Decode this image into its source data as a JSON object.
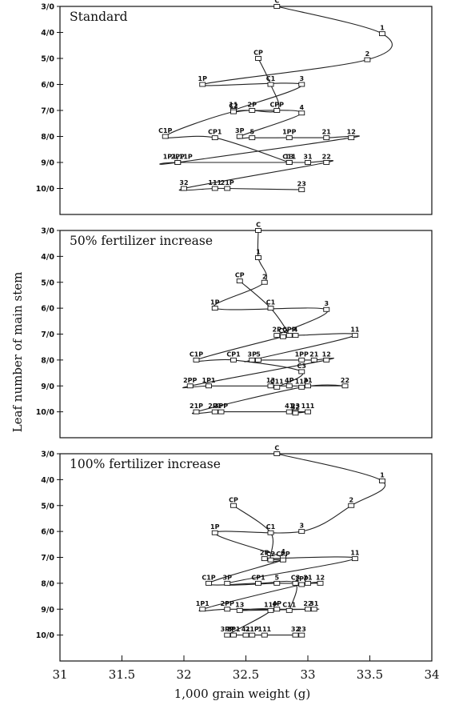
{
  "chart_data": {
    "type": "scatter",
    "ylabel": "Leaf number of main stem",
    "xlabel": "1,000 grain weight (g)",
    "x_ticks": [
      "31",
      "31.5",
      "32",
      "32.5",
      "33",
      "33.5",
      "34"
    ],
    "y_ticks": [
      "3/0",
      "4/0",
      "5/0",
      "6/0",
      "7/0",
      "8/0",
      "9/0",
      "10/0"
    ],
    "xlim": [
      31,
      34
    ],
    "ylim": [
      3,
      11
    ],
    "panels": [
      {
        "title": "Standard",
        "points": [
          {
            "label": "C",
            "x": 32.75,
            "y": 3.0
          },
          {
            "label": "1",
            "x": 33.6,
            "y": 4.05
          },
          {
            "label": "2",
            "x": 33.48,
            "y": 5.05
          },
          {
            "label": "3",
            "x": 32.95,
            "y": 6.0
          },
          {
            "label": "4",
            "x": 32.95,
            "y": 7.1
          },
          {
            "label": "5",
            "x": 32.55,
            "y": 8.05
          },
          {
            "label": "CP",
            "x": 32.6,
            "y": 5.0
          },
          {
            "label": "C1",
            "x": 32.7,
            "y": 6.0
          },
          {
            "label": "1P",
            "x": 32.15,
            "y": 6.0
          },
          {
            "label": "11",
            "x": 32.4,
            "y": 7.0
          },
          {
            "label": "C2",
            "x": 32.4,
            "y": 7.05
          },
          {
            "label": "2P",
            "x": 32.55,
            "y": 7.0
          },
          {
            "label": "CPP",
            "x": 32.75,
            "y": 7.0
          },
          {
            "label": "C1P",
            "x": 31.85,
            "y": 8.0
          },
          {
            "label": "CP1",
            "x": 32.25,
            "y": 8.05
          },
          {
            "label": "3P",
            "x": 32.45,
            "y": 8.0
          },
          {
            "label": "1PP",
            "x": 32.85,
            "y": 8.05
          },
          {
            "label": "21",
            "x": 33.15,
            "y": 8.05
          },
          {
            "label": "12",
            "x": 33.35,
            "y": 8.05
          },
          {
            "label": "13",
            "x": 32.85,
            "y": 9.0
          },
          {
            "label": "31",
            "x": 33.0,
            "y": 9.0
          },
          {
            "label": "22",
            "x": 33.15,
            "y": 9.0
          },
          {
            "label": "C11",
            "x": 32.85,
            "y": 9.0
          },
          {
            "label": "2PP",
            "x": 31.95,
            "y": 9.0
          },
          {
            "label": "1P1,11P",
            "x": 31.95,
            "y": 9.0
          },
          {
            "label": "32",
            "x": 32.0,
            "y": 10.0
          },
          {
            "label": "111",
            "x": 32.25,
            "y": 10.0
          },
          {
            "label": "21P",
            "x": 32.35,
            "y": 10.0
          },
          {
            "label": "23",
            "x": 32.95,
            "y": 10.05
          }
        ]
      },
      {
        "title": "50% fertilizer increase",
        "points": [
          {
            "label": "C",
            "x": 32.6,
            "y": 3.0
          },
          {
            "label": "1",
            "x": 32.6,
            "y": 4.05
          },
          {
            "label": "2",
            "x": 32.65,
            "y": 5.0
          },
          {
            "label": "3",
            "x": 33.15,
            "y": 6.05
          },
          {
            "label": "4",
            "x": 32.9,
            "y": 7.05
          },
          {
            "label": "5",
            "x": 32.6,
            "y": 8.0
          },
          {
            "label": "CP",
            "x": 32.45,
            "y": 4.95
          },
          {
            "label": "C1",
            "x": 32.7,
            "y": 6.0
          },
          {
            "label": "1P",
            "x": 32.25,
            "y": 6.0
          },
          {
            "label": "11",
            "x": 33.38,
            "y": 7.05
          },
          {
            "label": "2P",
            "x": 32.75,
            "y": 7.05
          },
          {
            "label": "CPP",
            "x": 32.85,
            "y": 7.05
          },
          {
            "label": "C2",
            "x": 32.8,
            "y": 7.1
          },
          {
            "label": "C1P",
            "x": 32.1,
            "y": 8.0
          },
          {
            "label": "CP1",
            "x": 32.4,
            "y": 8.0
          },
          {
            "label": "3P",
            "x": 32.55,
            "y": 8.0
          },
          {
            "label": "1PP",
            "x": 32.95,
            "y": 8.0
          },
          {
            "label": "21",
            "x": 33.05,
            "y": 8.0
          },
          {
            "label": "12",
            "x": 33.15,
            "y": 8.0
          },
          {
            "label": "C3",
            "x": 32.95,
            "y": 8.45
          },
          {
            "label": "22",
            "x": 33.3,
            "y": 9.0
          },
          {
            "label": "2PP",
            "x": 32.05,
            "y": 9.0
          },
          {
            "label": "1P1",
            "x": 32.2,
            "y": 9.0
          },
          {
            "label": "13",
            "x": 32.7,
            "y": 9.0
          },
          {
            "label": "4P",
            "x": 32.85,
            "y": 9.0
          },
          {
            "label": "31",
            "x": 33.0,
            "y": 9.0
          },
          {
            "label": "11P",
            "x": 32.95,
            "y": 9.05
          },
          {
            "label": "C11",
            "x": 32.75,
            "y": 9.05
          },
          {
            "label": "21P",
            "x": 32.1,
            "y": 10.0
          },
          {
            "label": "2P1",
            "x": 32.25,
            "y": 10.0
          },
          {
            "label": "3PP",
            "x": 32.3,
            "y": 10.0
          },
          {
            "label": "41",
            "x": 32.85,
            "y": 10.0
          },
          {
            "label": "23",
            "x": 32.9,
            "y": 10.0
          },
          {
            "label": "111",
            "x": 33.0,
            "y": 10.0
          },
          {
            "label": "32",
            "x": 32.9,
            "y": 10.05
          }
        ]
      },
      {
        "title": "100% fertilizer increase",
        "points": [
          {
            "label": "C",
            "x": 32.75,
            "y": 3.0
          },
          {
            "label": "1",
            "x": 33.6,
            "y": 4.05
          },
          {
            "label": "2",
            "x": 33.35,
            "y": 5.0
          },
          {
            "label": "3",
            "x": 32.95,
            "y": 6.0
          },
          {
            "label": "4",
            "x": 32.8,
            "y": 7.0
          },
          {
            "label": "5",
            "x": 32.75,
            "y": 8.0
          },
          {
            "label": "CP",
            "x": 32.4,
            "y": 5.0
          },
          {
            "label": "C1",
            "x": 32.7,
            "y": 6.05
          },
          {
            "label": "1P",
            "x": 32.25,
            "y": 6.05
          },
          {
            "label": "11",
            "x": 33.38,
            "y": 7.05
          },
          {
            "label": "2P",
            "x": 32.65,
            "y": 7.05
          },
          {
            "label": "C2",
            "x": 32.7,
            "y": 7.1
          },
          {
            "label": "CPP",
            "x": 32.8,
            "y": 7.1
          },
          {
            "label": "C1P",
            "x": 32.2,
            "y": 8.0
          },
          {
            "label": "3P",
            "x": 32.35,
            "y": 8.0
          },
          {
            "label": "CP1",
            "x": 32.6,
            "y": 8.0
          },
          {
            "label": "C3",
            "x": 32.9,
            "y": 8.0
          },
          {
            "label": "21",
            "x": 33.0,
            "y": 8.0
          },
          {
            "label": "12",
            "x": 33.1,
            "y": 8.0
          },
          {
            "label": "1PP",
            "x": 32.95,
            "y": 8.05
          },
          {
            "label": "1P1",
            "x": 32.15,
            "y": 9.0
          },
          {
            "label": "2PP",
            "x": 32.35,
            "y": 9.0
          },
          {
            "label": "13",
            "x": 32.45,
            "y": 9.05
          },
          {
            "label": "4P",
            "x": 32.75,
            "y": 9.0
          },
          {
            "label": "11P",
            "x": 32.7,
            "y": 9.05
          },
          {
            "label": "C11",
            "x": 32.85,
            "y": 9.05
          },
          {
            "label": "22",
            "x": 33.0,
            "y": 9.0
          },
          {
            "label": "31",
            "x": 33.05,
            "y": 9.0
          },
          {
            "label": "3PP",
            "x": 32.35,
            "y": 10.0
          },
          {
            "label": "2P1",
            "x": 32.4,
            "y": 10.0
          },
          {
            "label": "41",
            "x": 32.5,
            "y": 10.0
          },
          {
            "label": "21P",
            "x": 32.55,
            "y": 10.0
          },
          {
            "label": "111",
            "x": 32.65,
            "y": 10.0
          },
          {
            "label": "32",
            "x": 32.9,
            "y": 10.0
          },
          {
            "label": "23",
            "x": 32.95,
            "y": 10.0
          }
        ]
      }
    ]
  }
}
